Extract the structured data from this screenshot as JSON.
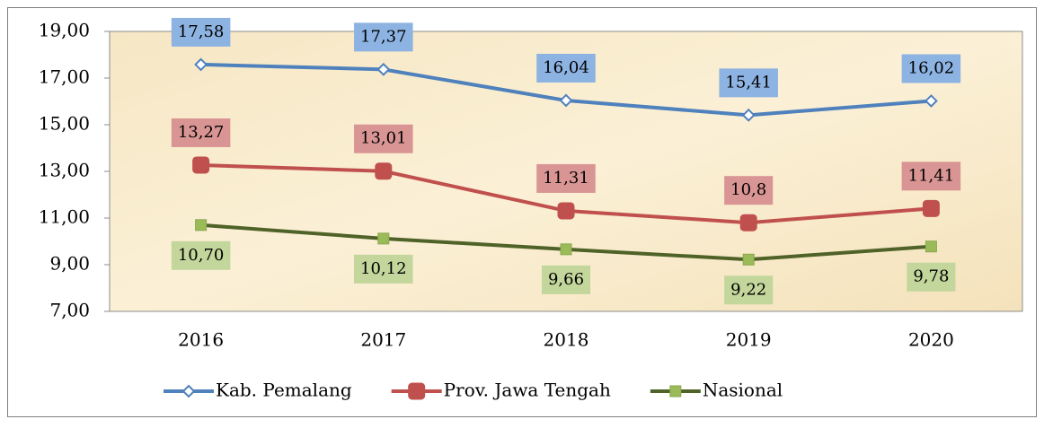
{
  "chart_data": {
    "type": "line",
    "categories": [
      "2016",
      "2017",
      "2018",
      "2019",
      "2020"
    ],
    "series": [
      {
        "name": "Kab. Pemalang",
        "color": "#4f81bd",
        "values": [
          17.58,
          17.37,
          16.04,
          15.41,
          16.02
        ],
        "value_labels": [
          "17,58",
          "17,37",
          "16,04",
          "15,41",
          "16,02"
        ]
      },
      {
        "name": "Prov. Jawa Tengah",
        "color": "#c0504d",
        "values": [
          13.27,
          13.01,
          11.31,
          10.8,
          11.41
        ],
        "value_labels": [
          "13,27",
          "13,01",
          "11,31",
          "10,8",
          "11,41"
        ]
      },
      {
        "name": "Nasional",
        "color": "#4f6228",
        "values": [
          10.7,
          10.12,
          9.66,
          9.22,
          9.78
        ],
        "value_labels": [
          "10,70",
          "10,12",
          "9,66",
          "9,22",
          "9,78"
        ]
      }
    ],
    "ylim": [
      7,
      19
    ],
    "yticks": [
      {
        "value": 7,
        "label": "7,00"
      },
      {
        "value": 9,
        "label": "9,00"
      },
      {
        "value": 11,
        "label": "11,00"
      },
      {
        "value": 13,
        "label": "13,00"
      },
      {
        "value": 15,
        "label": "15,00"
      },
      {
        "value": 17,
        "label": "17,00"
      },
      {
        "value": 19,
        "label": "19,00"
      }
    ],
    "legend": "bottom"
  }
}
